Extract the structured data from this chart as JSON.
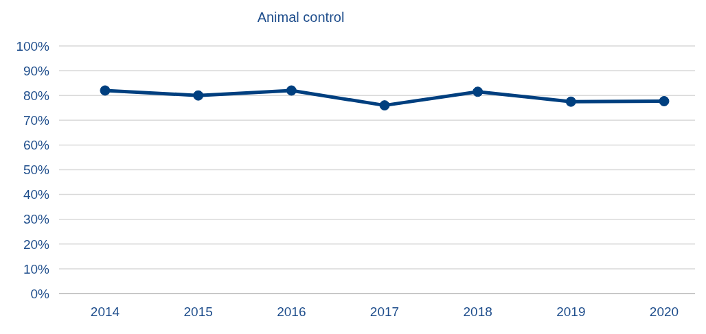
{
  "chart_data": {
    "type": "line",
    "title": "Animal control",
    "categories": [
      "2014",
      "2015",
      "2016",
      "2017",
      "2018",
      "2019",
      "2020"
    ],
    "series": [
      {
        "color": "#003f7f",
        "values": [
          82,
          80,
          82,
          76,
          81.5,
          77.5,
          77.7
        ]
      }
    ],
    "ylim": [
      0,
      100
    ],
    "yticks": [
      {
        "value": 0,
        "label": "0%"
      },
      {
        "value": 10,
        "label": "10%"
      },
      {
        "value": 20,
        "label": "20%"
      },
      {
        "value": 30,
        "label": "30%"
      },
      {
        "value": 40,
        "label": "40%"
      },
      {
        "value": 50,
        "label": "50%"
      },
      {
        "value": 60,
        "label": "60%"
      },
      {
        "value": 70,
        "label": "70%"
      },
      {
        "value": 80,
        "label": "80%"
      },
      {
        "value": 90,
        "label": "90%"
      },
      {
        "value": 100,
        "label": "100%"
      }
    ],
    "grid": "y",
    "marker": "circle",
    "line_style": "solid",
    "legend": false
  }
}
